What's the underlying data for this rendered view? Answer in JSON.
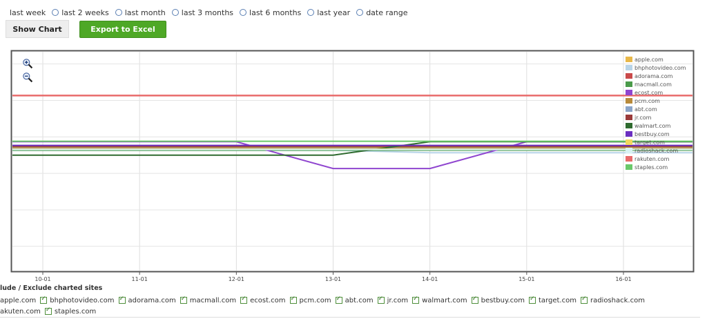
{
  "range_options": [
    {
      "label": "last week"
    },
    {
      "label": "last 2 weeks"
    },
    {
      "label": "last month"
    },
    {
      "label": "last 3 months"
    },
    {
      "label": "last 6 months"
    },
    {
      "label": "last year"
    },
    {
      "label": "date range"
    }
  ],
  "buttons": {
    "show_chart": "Show Chart",
    "export": "Export to Excel"
  },
  "colors": {
    "export_green": "#4ea826",
    "radio_border": "#5a7fb3"
  },
  "chart_data": {
    "type": "line",
    "x": [
      "10-01",
      "11-01",
      "12-01",
      "13-01",
      "14-01",
      "15-01",
      "16-01"
    ],
    "xlabel": "",
    "ylabel": "",
    "grid": true,
    "legend_position": "right",
    "series": [
      {
        "name": "apple.com",
        "color": "#e8b84a",
        "values": [
          3.1,
          3.1,
          3.1,
          3.1,
          3.1,
          3.1,
          3.1
        ]
      },
      {
        "name": "bhphotovideo.com",
        "color": "#b8d4e8",
        "values": [
          2.95,
          2.95,
          2.95,
          2.95,
          2.85,
          2.85,
          2.85
        ]
      },
      {
        "name": "adorama.com",
        "color": "#c94a4a",
        "values": [
          3.05,
          3.05,
          3.05,
          3.05,
          3.05,
          3.05,
          3.05
        ]
      },
      {
        "name": "macmall.com",
        "color": "#4a9a4a",
        "values": [
          2.95,
          2.95,
          2.95,
          2.95,
          2.95,
          2.95,
          2.95
        ]
      },
      {
        "name": "ecost.com",
        "color": "#8f45cf",
        "values": [
          3.3,
          3.3,
          3.3,
          2.2,
          2.2,
          3.3,
          3.3
        ]
      },
      {
        "name": "pcm.com",
        "color": "#b88a3a",
        "values": [
          3.08,
          3.08,
          3.08,
          3.08,
          3.08,
          3.08,
          3.08
        ]
      },
      {
        "name": "abt.com",
        "color": "#8aa4c8",
        "values": [
          3.02,
          3.02,
          3.02,
          3.02,
          3.02,
          3.02,
          3.02
        ]
      },
      {
        "name": "jr.com",
        "color": "#9a3a3a",
        "values": [
          3.12,
          3.12,
          3.12,
          3.12,
          3.12,
          3.12,
          3.12
        ]
      },
      {
        "name": "walmart.com",
        "color": "#2e6a2e",
        "values": [
          2.75,
          2.75,
          2.75,
          2.75,
          3.3,
          3.3,
          3.3
        ]
      },
      {
        "name": "bestbuy.com",
        "color": "#6a2ec0",
        "values": [
          3.15,
          3.15,
          3.15,
          3.15,
          3.15,
          3.15,
          3.15
        ]
      },
      {
        "name": "target.com",
        "color": "#f2d860",
        "values": [
          3.0,
          3.0,
          3.0,
          3.0,
          3.0,
          3.0,
          3.0
        ]
      },
      {
        "name": "radioshack.com",
        "color": "#d8f2f2",
        "values": [
          2.98,
          2.98,
          2.98,
          2.98,
          2.98,
          2.98,
          2.98
        ]
      },
      {
        "name": "rakuten.com",
        "color": "#e86a6a",
        "values": [
          5.2,
          5.2,
          5.2,
          5.2,
          5.2,
          5.2,
          5.2
        ]
      },
      {
        "name": "staples.com",
        "color": "#6ac86a",
        "values": [
          3.32,
          3.32,
          3.32,
          3.32,
          3.32,
          3.32,
          3.32
        ]
      }
    ],
    "ylim": [
      -2,
      7
    ]
  },
  "include_section": {
    "title": "lude / Exclude charted sites",
    "row1": [
      {
        "label": "apple.com",
        "checkbox": false
      },
      {
        "label": "bhphotovideo.com",
        "checkbox": true
      },
      {
        "label": "adorama.com",
        "checkbox": true
      },
      {
        "label": "macmall.com",
        "checkbox": true
      },
      {
        "label": "ecost.com",
        "checkbox": true
      },
      {
        "label": "pcm.com",
        "checkbox": true
      },
      {
        "label": "abt.com",
        "checkbox": true
      },
      {
        "label": "jr.com",
        "checkbox": true
      },
      {
        "label": "walmart.com",
        "checkbox": true
      },
      {
        "label": "bestbuy.com",
        "checkbox": true
      },
      {
        "label": "target.com",
        "checkbox": true
      },
      {
        "label": "radioshack.com",
        "checkbox": true
      }
    ],
    "row2": [
      {
        "label": "akuten.com",
        "checkbox": false
      },
      {
        "label": "staples.com",
        "checkbox": true
      }
    ]
  }
}
